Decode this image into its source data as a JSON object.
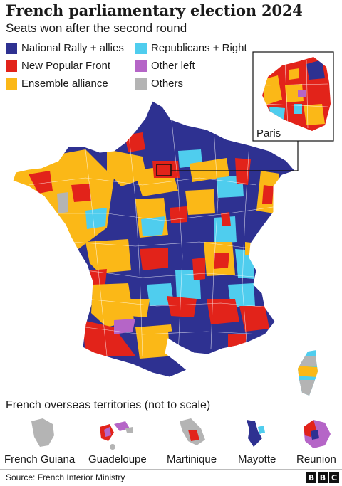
{
  "title": "French parliamentary election 2024",
  "subtitle": "Seats won after the second round",
  "legend": [
    {
      "label": "National Rally + allies",
      "color": "#2e3191"
    },
    {
      "label": "Republicans + Right",
      "color": "#4fcdee"
    },
    {
      "label": "New Popular Front",
      "color": "#e2231a"
    },
    {
      "label": "Other left",
      "color": "#b565c7"
    },
    {
      "label": "Ensemble alliance",
      "color": "#fbb817"
    },
    {
      "label": "Others",
      "color": "#b4b4b4"
    }
  ],
  "inset_label": "Paris",
  "overseas": {
    "title": "French overseas territories (not to scale)",
    "territories": [
      "French Guiana",
      "Guadeloupe",
      "Martinique",
      "Mayotte",
      "Reunion"
    ]
  },
  "source": "Source: French Interior Ministry",
  "logo": [
    "B",
    "B",
    "C"
  ]
}
